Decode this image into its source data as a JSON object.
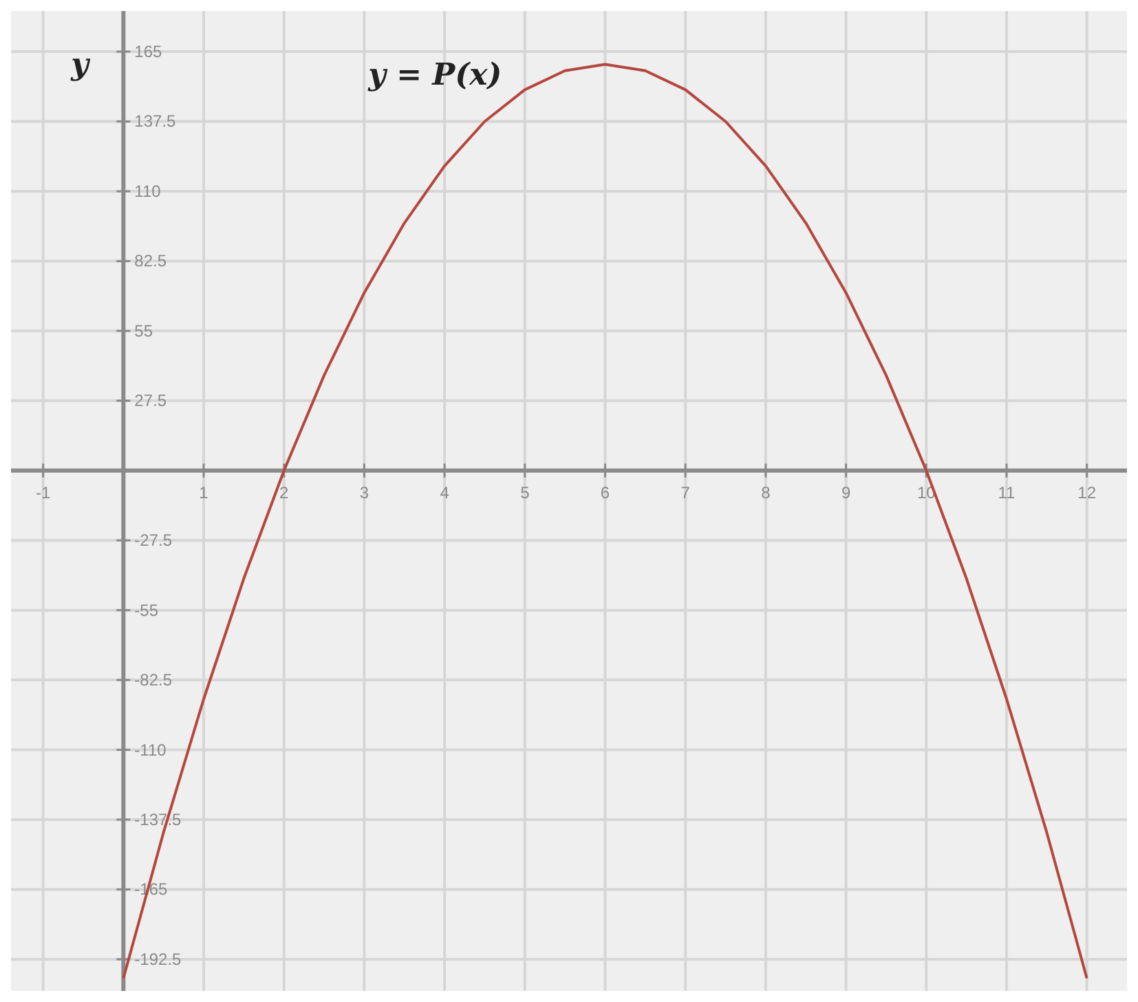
{
  "chart_data": {
    "type": "line",
    "ylabel": "y",
    "x": [
      0,
      0.5,
      1,
      1.5,
      2,
      2.5,
      3,
      3.5,
      4,
      4.5,
      5,
      5.5,
      6,
      6.5,
      7,
      7.5,
      8,
      8.5,
      9,
      9.5,
      10,
      10.5,
      11,
      11.5,
      12
    ],
    "series": [
      {
        "name": "y = P(x)",
        "color": "#b5473f",
        "values": [
          -200,
          -142.5,
          -90,
          -42.5,
          0,
          37.5,
          70,
          97.5,
          120,
          137.5,
          150,
          157.5,
          160,
          157.5,
          150,
          137.5,
          120,
          97.5,
          70,
          37.5,
          0,
          -42.5,
          -90,
          -142.5,
          -200
        ]
      }
    ],
    "xlim": [
      -1.4,
      12.5
    ],
    "ylim": [
      -205,
      181
    ],
    "xticks": [
      -1,
      1,
      2,
      3,
      4,
      5,
      6,
      7,
      8,
      9,
      10,
      11,
      12
    ],
    "yticks": [
      -192.5,
      -165,
      -137.5,
      -110,
      -82.5,
      -55,
      -27.5,
      27.5,
      55,
      82.5,
      110,
      137.5,
      165
    ],
    "grid": true
  }
}
